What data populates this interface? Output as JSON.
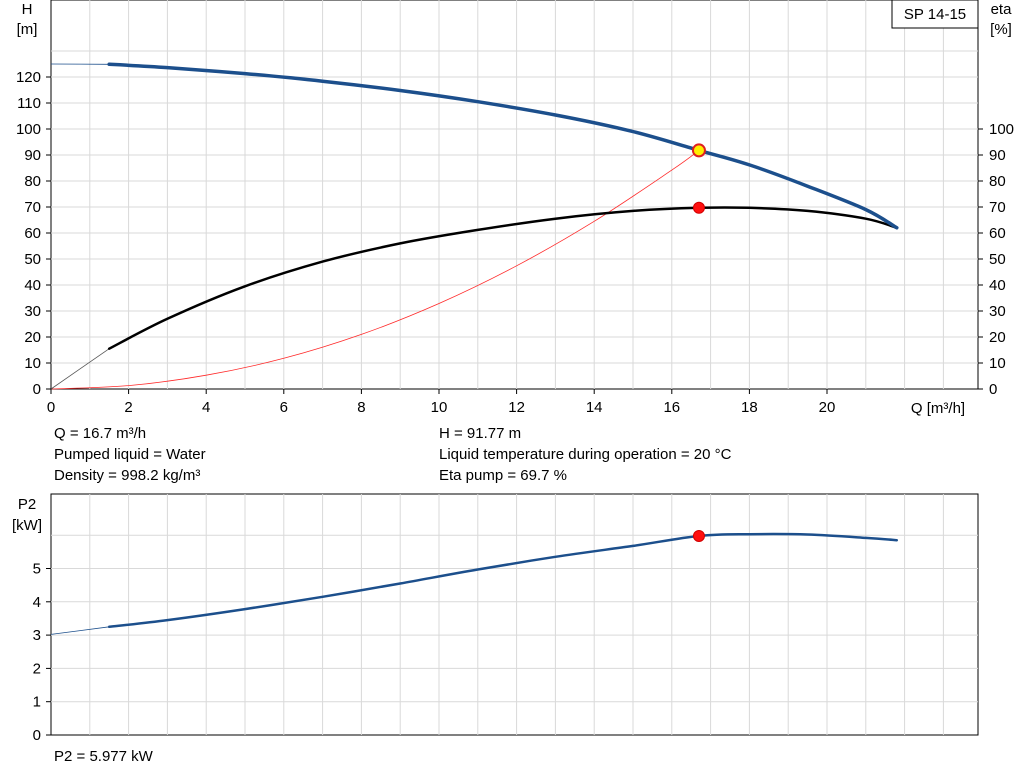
{
  "chart_data": [
    {
      "type": "line",
      "title": "SP 14-15",
      "xlabel": "Q [m³/h]",
      "ylabel_left": "H\n[m]",
      "ylabel_right": "eta\n[%]",
      "xlim": [
        0,
        24
      ],
      "ylim_left": [
        0,
        130
      ],
      "ylim_right": [
        0,
        130
      ],
      "x_ticks": [
        0,
        2,
        4,
        6,
        8,
        10,
        12,
        14,
        16,
        18,
        20
      ],
      "y_ticks_left": [
        0,
        10,
        20,
        30,
        40,
        50,
        60,
        70,
        80,
        90,
        100,
        110,
        120
      ],
      "y_ticks_right": [
        0,
        10,
        20,
        30,
        40,
        50,
        60,
        70,
        80,
        90,
        100
      ],
      "grid": true,
      "series": [
        {
          "name": "H",
          "color": "#1c4f8c",
          "x": [
            1.5,
            3,
            5,
            7,
            9,
            11,
            13,
            15,
            16.7,
            18,
            19.5,
            21,
            21.8
          ],
          "y": [
            124.9,
            123.6,
            121.3,
            118.4,
            114.8,
            110.5,
            105.4,
            99.0,
            91.77,
            86.2,
            78.0,
            69.0,
            62.0
          ],
          "extension": {
            "x": [
              0,
              1.5
            ],
            "y": [
              125.0,
              124.9
            ]
          }
        },
        {
          "name": "eta",
          "color": "#000000",
          "axis": "right",
          "x": [
            1.5,
            3,
            5,
            7,
            9,
            11,
            13,
            15,
            16.7,
            18,
            19.5,
            21,
            21.8
          ],
          "y": [
            15.5,
            27.0,
            39.5,
            49.0,
            56.0,
            61.2,
            65.5,
            68.5,
            69.7,
            69.7,
            68.5,
            65.5,
            62.0
          ],
          "extension": {
            "x": [
              0,
              1.5
            ],
            "y": [
              0,
              15.5
            ]
          }
        },
        {
          "name": "system curve",
          "color": "#ff2a2a",
          "x": [
            0,
            2,
            4,
            6,
            8,
            10,
            12,
            14,
            16,
            16.7
          ],
          "y": [
            0,
            1.3,
            5.3,
            11.8,
            21.0,
            32.9,
            47.4,
            64.5,
            84.2,
            91.77
          ]
        }
      ],
      "operating_points": [
        {
          "name": "duty point H",
          "x": 16.7,
          "y": 91.77,
          "fill": "#ffef00",
          "stroke": "#e02020"
        },
        {
          "name": "duty point eta",
          "x": 16.7,
          "y": 69.7,
          "fill": "#ff1010",
          "stroke": "#d00000"
        }
      ]
    },
    {
      "type": "line",
      "title": "",
      "xlabel": "",
      "ylabel": "P2\n[kW]",
      "xlim": [
        0,
        24
      ],
      "ylim": [
        0,
        6
      ],
      "y_ticks": [
        0,
        1,
        2,
        3,
        4,
        5
      ],
      "grid": true,
      "series": [
        {
          "name": "P2",
          "color": "#1c4f8c",
          "x": [
            1.5,
            3,
            5,
            7,
            9,
            11,
            13,
            15,
            16.7,
            18,
            19.5,
            21,
            21.8
          ],
          "y": [
            3.25,
            3.45,
            3.78,
            4.15,
            4.55,
            4.97,
            5.35,
            5.68,
            5.977,
            6.03,
            6.02,
            5.92,
            5.85
          ],
          "extension": {
            "x": [
              0,
              1.5
            ],
            "y": [
              3.02,
              3.25
            ]
          }
        }
      ],
      "operating_points": [
        {
          "name": "duty point P2",
          "x": 16.7,
          "y": 5.977,
          "fill": "#ff1010",
          "stroke": "#d00000"
        }
      ]
    }
  ],
  "info": {
    "q": "Q = 16.7 m³/h",
    "h": "H = 91.77 m",
    "liquid": "Pumped liquid = Water",
    "temp": "Liquid temperature during operation = 20 °C",
    "density": "Density = 998.2 kg/m³",
    "eta": "Eta pump = 69.7 %",
    "p2": "P2 = 5.977 kW"
  }
}
